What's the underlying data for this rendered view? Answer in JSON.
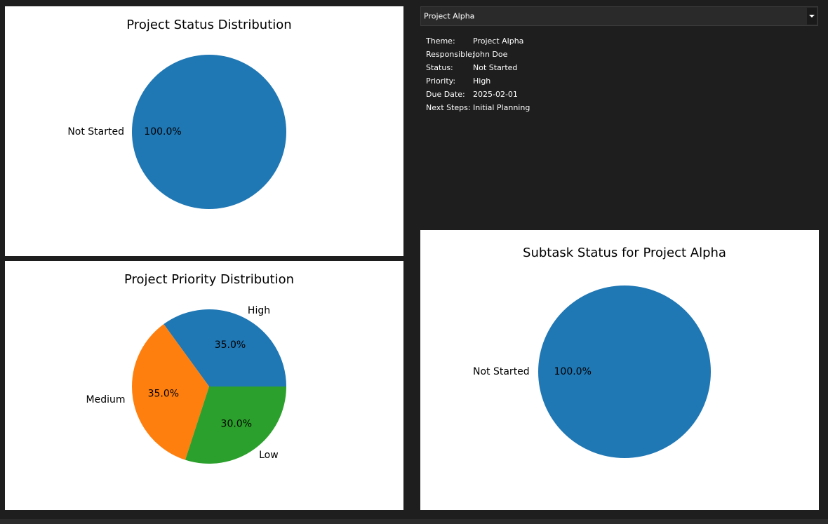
{
  "dropdown": {
    "selected": "Project Alpha"
  },
  "details": {
    "rows": [
      {
        "label": "Theme:",
        "value": "Project Alpha"
      },
      {
        "label": "Responsible:",
        "value": "John Doe"
      },
      {
        "label": "Status:",
        "value": "Not Started"
      },
      {
        "label": "Priority:",
        "value": "High"
      },
      {
        "label": "Due Date:",
        "value": "2025-02-01"
      },
      {
        "label": "Next Steps:",
        "value": "Initial Planning"
      }
    ]
  },
  "chart_data": [
    {
      "type": "pie",
      "title": "Project Status Distribution",
      "categories": [
        "Not Started"
      ],
      "values": [
        100
      ],
      "value_labels": [
        "100.0%"
      ],
      "colors": [
        "#1f77b4"
      ]
    },
    {
      "type": "pie",
      "title": "Project Priority Distribution",
      "categories": [
        "High",
        "Medium",
        "Low"
      ],
      "values": [
        35,
        35,
        30
      ],
      "value_labels": [
        "35.0%",
        "35.0%",
        "30.0%"
      ],
      "colors": [
        "#1f77b4",
        "#ff7f0e",
        "#2ca02c"
      ]
    },
    {
      "type": "pie",
      "title": "Subtask Status for Project Alpha",
      "categories": [
        "Not Started"
      ],
      "values": [
        100
      ],
      "value_labels": [
        "100.0%"
      ],
      "colors": [
        "#1f77b4"
      ]
    }
  ]
}
